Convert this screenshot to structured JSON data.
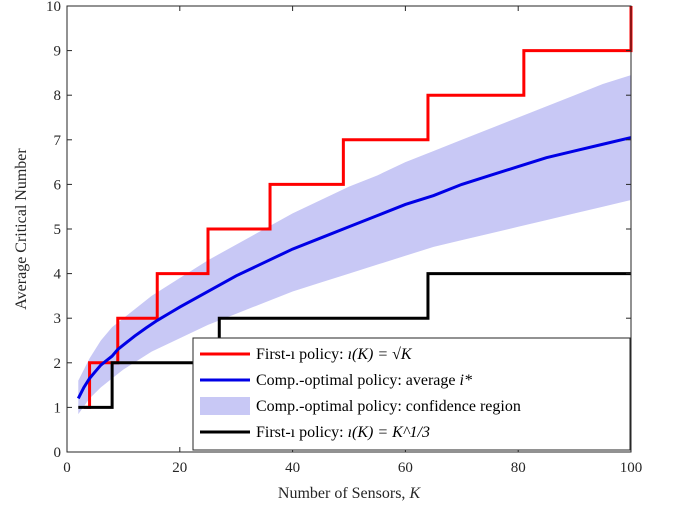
{
  "chart_data": {
    "type": "line",
    "title": "",
    "xlabel": {
      "text": "Number of Sensors, ",
      "var": "K"
    },
    "ylabel": "Average Critical Number",
    "xlim": [
      0,
      100
    ],
    "ylim": [
      0,
      10
    ],
    "xticks": [
      0,
      20,
      40,
      60,
      80,
      100
    ],
    "yticks": [
      0,
      1,
      2,
      3,
      4,
      5,
      6,
      7,
      8,
      9,
      10
    ],
    "grid": false,
    "box": true,
    "legend_location": "bottom-center",
    "series": [
      {
        "id": "sqrt",
        "kind": "step",
        "color": "#ff0000",
        "legend": {
          "prefix": "First-ı policy: ",
          "math": "ı(K) = √K"
        },
        "points": [
          [
            3,
            1
          ],
          [
            4,
            2
          ],
          [
            8,
            2
          ],
          [
            9,
            3
          ],
          [
            15,
            3
          ],
          [
            16,
            4
          ],
          [
            24,
            4
          ],
          [
            25,
            5
          ],
          [
            35,
            5
          ],
          [
            36,
            6
          ],
          [
            48,
            6
          ],
          [
            49,
            7
          ],
          [
            63,
            7
          ],
          [
            64,
            8
          ],
          [
            80,
            8
          ],
          [
            81,
            9
          ],
          [
            99,
            9
          ],
          [
            100,
            10
          ]
        ]
      },
      {
        "id": "avg",
        "kind": "line",
        "color": "#0000e6",
        "legend": {
          "prefix": "Comp.-optimal policy: average ",
          "math": "i*"
        },
        "x": [
          2,
          3,
          4,
          5,
          6,
          7,
          8,
          9,
          10,
          12,
          14,
          16,
          18,
          20,
          25,
          30,
          35,
          40,
          45,
          50,
          55,
          60,
          65,
          70,
          75,
          80,
          85,
          90,
          95,
          100
        ],
        "y": [
          1.2,
          1.45,
          1.65,
          1.8,
          1.95,
          2.05,
          2.15,
          2.3,
          2.4,
          2.6,
          2.78,
          2.95,
          3.1,
          3.25,
          3.6,
          3.95,
          4.25,
          4.55,
          4.8,
          5.05,
          5.3,
          5.55,
          5.75,
          6.0,
          6.2,
          6.4,
          6.6,
          6.75,
          6.9,
          7.05
        ]
      },
      {
        "id": "band",
        "kind": "band",
        "color": "#c8c8f5",
        "legend": {
          "prefix": "Comp.-optimal policy: confidence region",
          "math": ""
        },
        "x": [
          2,
          4,
          6,
          8,
          10,
          15,
          20,
          25,
          30,
          35,
          40,
          45,
          50,
          55,
          60,
          65,
          70,
          75,
          80,
          85,
          90,
          95,
          100
        ],
        "lower": [
          0.85,
          1.2,
          1.45,
          1.65,
          1.85,
          2.25,
          2.55,
          2.85,
          3.1,
          3.35,
          3.6,
          3.8,
          4.0,
          4.2,
          4.4,
          4.6,
          4.75,
          4.9,
          5.05,
          5.2,
          5.35,
          5.5,
          5.65
        ],
        "upper": [
          1.6,
          2.1,
          2.5,
          2.8,
          3.0,
          3.5,
          3.9,
          4.3,
          4.65,
          5.0,
          5.35,
          5.65,
          5.95,
          6.2,
          6.5,
          6.75,
          7.0,
          7.25,
          7.5,
          7.75,
          8.0,
          8.25,
          8.45
        ]
      },
      {
        "id": "cbrt",
        "kind": "step",
        "color": "#000000",
        "legend": {
          "prefix": "First-ı policy: ",
          "math": "ı(K) = K^1/3"
        },
        "points": [
          [
            2,
            1
          ],
          [
            7,
            1
          ],
          [
            8,
            2
          ],
          [
            26,
            2
          ],
          [
            27,
            3
          ],
          [
            63,
            3
          ],
          [
            64,
            4
          ],
          [
            100,
            4
          ]
        ]
      }
    ]
  }
}
